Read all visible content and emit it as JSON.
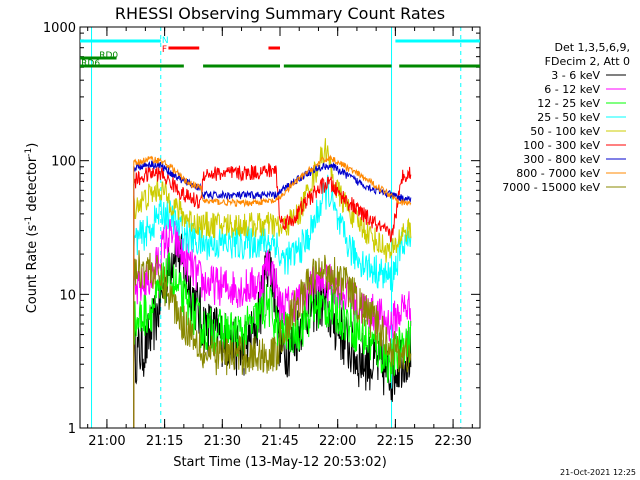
{
  "chart_data": {
    "type": "line",
    "title": "RHESSI Observing Summary Count Rates",
    "xlabel": "Start Time (13-May-12 20:53:02)",
    "ylabel": "Count Rate (s⁻¹ detector⁻¹)",
    "ylabel_parts": {
      "pre": "Count Rate (s",
      "sup1": "-1",
      "mid": " detector",
      "sup2": "-1",
      "post": ")"
    },
    "y_scale": "log",
    "ylim": [
      1,
      1000
    ],
    "x_tick_labels": [
      "21:00",
      "21:15",
      "21:30",
      "21:45",
      "22:00",
      "22:15",
      "22:30"
    ],
    "x_tick_minutes": [
      420,
      435,
      450,
      465,
      480,
      495,
      510
    ],
    "xlim_minutes": [
      413,
      517
    ],
    "x_units_note": "minutes after 14:00",
    "y_ticks": [
      1,
      10,
      100,
      1000
    ],
    "y_tick_labels": [
      "1",
      "10",
      "100",
      "1000"
    ],
    "legend": {
      "placement": "right",
      "header": [
        "Det 1,3,5,6,9,",
        "FDecim 2, Att 0"
      ],
      "entries": [
        {
          "label": "3 - 6 keV",
          "color": "#000000"
        },
        {
          "label": "6 - 12 keV",
          "color": "#ff00ff"
        },
        {
          "label": "12 - 25 keV",
          "color": "#00ff00"
        },
        {
          "label": "25 - 50 keV",
          "color": "#00ffff"
        },
        {
          "label": "50 - 100 keV",
          "color": "#cccc00"
        },
        {
          "label": "100 - 300 keV",
          "color": "#ff0000"
        },
        {
          "label": "300 - 800 keV",
          "color": "#0000cc"
        },
        {
          "label": "800 - 7000 keV",
          "color": "#ff8800"
        },
        {
          "label": "7000 - 15000 keV",
          "color": "#888800"
        }
      ]
    },
    "flags": [
      {
        "label": "N",
        "color": "#00ffff",
        "segments": [
          [
            413,
            434
          ],
          [
            495,
            517
          ]
        ]
      },
      {
        "label": "F",
        "color": "#ff0000",
        "segments": [
          [
            436,
            444
          ],
          [
            462,
            465
          ]
        ]
      },
      {
        "label": "RD0",
        "color": "#008800",
        "segments": [
          [
            413,
            422.5
          ]
        ]
      },
      {
        "label": "RD6",
        "color": "#008800",
        "segments": [
          [
            413,
            440
          ],
          [
            445,
            465
          ],
          [
            466,
            494
          ],
          [
            496,
            517
          ]
        ]
      }
    ],
    "vlines": [
      {
        "x": 416,
        "color": "#00ffff",
        "style": "solid"
      },
      {
        "x": 434,
        "color": "#00ffff",
        "style": "dashed"
      },
      {
        "x": 494,
        "color": "#00ffff",
        "style": "solid"
      },
      {
        "x": 512,
        "color": "#00ffff",
        "style": "dashed"
      }
    ],
    "series": [
      {
        "name": "3 - 6 keV",
        "color": "#000000",
        "noise": 0.45,
        "x": [
          427,
          430,
          433,
          435.5,
          438,
          440,
          445,
          455,
          458,
          460,
          462,
          464,
          465,
          468,
          472,
          476,
          478,
          481,
          485,
          490,
          494,
          497,
          499
        ],
        "y": [
          3.5,
          4,
          7,
          14,
          25,
          15,
          6,
          3.8,
          5,
          8,
          20,
          9,
          4,
          4,
          8,
          9,
          7,
          5,
          3.3,
          3,
          2.5,
          3.5,
          3.5
        ]
      },
      {
        "name": "6 - 12 keV",
        "color": "#ff00ff",
        "noise": 0.3,
        "x": [
          427,
          432,
          435,
          437,
          440,
          445,
          455,
          460,
          462,
          464,
          465,
          470,
          474,
          478,
          482,
          486,
          490,
          494,
          497,
          499
        ],
        "y": [
          10,
          14,
          25,
          28,
          19,
          12,
          11,
          12,
          18,
          12,
          8,
          9,
          12,
          12,
          10,
          8,
          7,
          6,
          8,
          8
        ]
      },
      {
        "name": "12 - 25 keV",
        "color": "#00ff00",
        "noise": 0.35,
        "x": [
          427,
          432,
          436,
          440,
          445,
          455,
          458,
          462,
          465,
          470,
          474,
          478,
          482,
          486,
          490,
          494,
          497,
          499
        ],
        "y": [
          6,
          8,
          14,
          9,
          5.5,
          5,
          6,
          8.5,
          5,
          5.5,
          8,
          8,
          6.5,
          5,
          4,
          3,
          4.5,
          4.5
        ]
      },
      {
        "name": "25 - 50 keV",
        "color": "#00ffff",
        "noise": 0.25,
        "x": [
          427,
          431,
          434,
          437,
          440,
          444.5,
          445,
          455,
          464,
          465,
          468,
          472,
          476,
          477.5,
          480,
          484,
          488,
          492,
          494,
          497,
          499
        ],
        "y": [
          25,
          30,
          42,
          38,
          28,
          24,
          24,
          24,
          25,
          18,
          19,
          25,
          50,
          62,
          34,
          20,
          16,
          14,
          13,
          25,
          25
        ]
      },
      {
        "name": "50 - 100 keV",
        "color": "#cccc00",
        "noise": 0.2,
        "x": [
          427,
          430,
          434,
          436,
          440,
          444.5,
          445,
          455,
          464,
          465,
          470,
          474,
          477,
          478,
          480,
          485,
          490,
          494,
          497,
          499
        ],
        "y": [
          45,
          52,
          62,
          52,
          38,
          33,
          33,
          33,
          33,
          30,
          40,
          80,
          125,
          90,
          58,
          35,
          25,
          20,
          30,
          30
        ]
      },
      {
        "name": "100 - 300 keV",
        "color": "#ff0000",
        "noise": 0.12,
        "x": [
          427,
          431,
          434,
          437,
          440,
          444.5,
          445,
          455,
          464,
          465,
          468,
          472,
          476,
          478,
          480,
          485,
          490,
          494,
          497,
          499
        ],
        "y": [
          70,
          80,
          80,
          67,
          55,
          48,
          80,
          80,
          85,
          35,
          35,
          50,
          65,
          68,
          58,
          43,
          33,
          27,
          80,
          80
        ]
      },
      {
        "name": "300 - 800 keV",
        "color": "#0000cc",
        "noise": 0.06,
        "x": [
          427,
          431,
          434,
          437,
          440,
          444.5,
          445,
          455,
          464,
          465,
          468,
          472,
          476,
          478,
          480,
          485,
          490,
          494,
          497,
          499
        ],
        "y": [
          88,
          95,
          92,
          80,
          70,
          62,
          55,
          55,
          55,
          58,
          68,
          80,
          90,
          92,
          86,
          70,
          60,
          55,
          52,
          52
        ]
      },
      {
        "name": "800 - 7000 keV",
        "color": "#ff8800",
        "noise": 0.05,
        "x": [
          427,
          431,
          434,
          437,
          440,
          444.5,
          445,
          455,
          464,
          465,
          468,
          472,
          476,
          478,
          480,
          485,
          490,
          494,
          497,
          499
        ],
        "y": [
          95,
          103,
          100,
          88,
          72,
          62,
          50,
          48,
          50,
          53,
          65,
          82,
          100,
          105,
          98,
          80,
          65,
          55,
          48,
          48
        ]
      },
      {
        "name": "7000 - 15000 keV",
        "color": "#888800",
        "noise": 0.3,
        "x": [
          427,
          431,
          434,
          437,
          440,
          444,
          445,
          455,
          464,
          465,
          470,
          474,
          478,
          482,
          486,
          490,
          494,
          497,
          499
        ],
        "y": [
          15,
          16,
          13,
          9,
          6,
          4.5,
          3.5,
          3.5,
          3.5,
          4.5,
          9,
          14,
          15,
          12,
          8,
          6,
          4,
          3.5,
          3.5
        ]
      }
    ]
  },
  "footer": {
    "date_stamp": "21-Oct-2021 12:25"
  }
}
